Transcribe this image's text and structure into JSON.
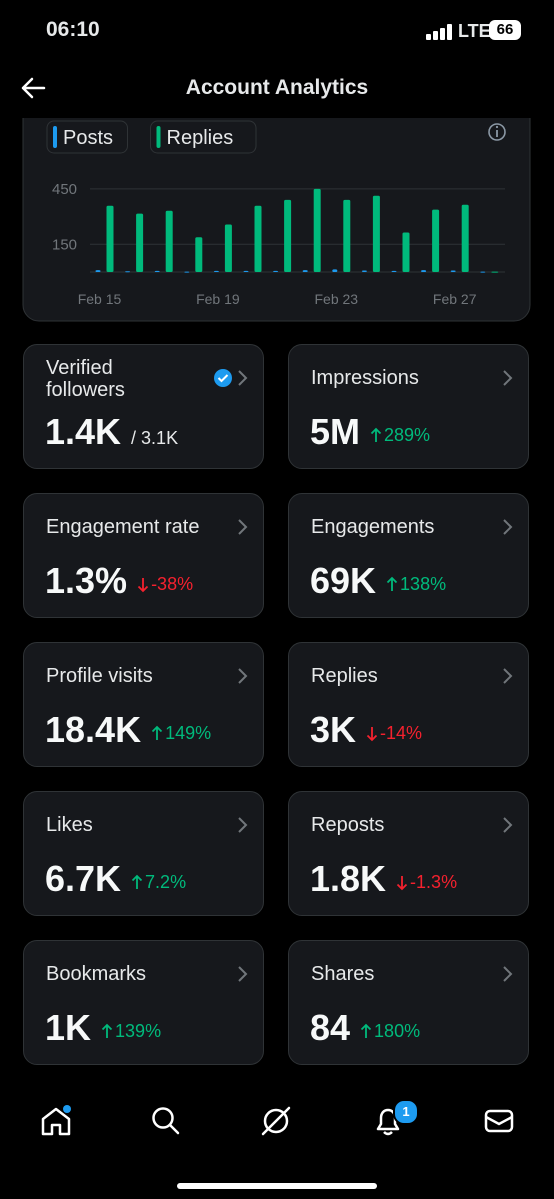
{
  "status_bar": {
    "time": "06:10",
    "network": "LTE",
    "battery": "66"
  },
  "header": {
    "title": "Account Analytics"
  },
  "chart": {
    "type": "bar",
    "categories": [
      "Feb 15",
      null,
      null,
      null,
      "Feb 19",
      null,
      null,
      null,
      "Feb 23",
      null,
      null,
      null,
      "Feb 27",
      null
    ],
    "series": [
      {
        "name": "Posts",
        "color": "#1d9bf0",
        "values": [
          10,
          4,
          6,
          2,
          6,
          6,
          6,
          10,
          14,
          8,
          6,
          10,
          8,
          2
        ]
      },
      {
        "name": "Replies",
        "color": "#00ba7c",
        "values": [
          359,
          316,
          332,
          188,
          257,
          359,
          391,
          450,
          391,
          413,
          214,
          338,
          364,
          2
        ]
      }
    ],
    "ylim": [
      0,
      520
    ],
    "yticks": [
      150,
      450
    ],
    "grid": true
  },
  "cards": [
    {
      "label": "Verified followers",
      "value": "1.4K",
      "sub": "/ 3.1K",
      "verified": true
    },
    {
      "label": "Impressions",
      "value": "5M",
      "change": "289%",
      "trend": "up"
    },
    {
      "label": "Engagement rate",
      "value": "1.3%",
      "change": "-38%",
      "trend": "down"
    },
    {
      "label": "Engagements",
      "value": "69K",
      "change": "138%",
      "trend": "up"
    },
    {
      "label": "Profile visits",
      "value": "18.4K",
      "change": "149%",
      "trend": "up"
    },
    {
      "label": "Replies",
      "value": "3K",
      "change": "-14%",
      "trend": "down"
    },
    {
      "label": "Likes",
      "value": "6.7K",
      "change": "7.2%",
      "trend": "up"
    },
    {
      "label": "Reposts",
      "value": "1.8K",
      "change": "-1.3%",
      "trend": "down"
    },
    {
      "label": "Bookmarks",
      "value": "1K",
      "change": "139%",
      "trend": "up"
    },
    {
      "label": "Shares",
      "value": "84",
      "change": "180%",
      "trend": "up"
    }
  ],
  "nav": {
    "notification_badge": "1"
  }
}
